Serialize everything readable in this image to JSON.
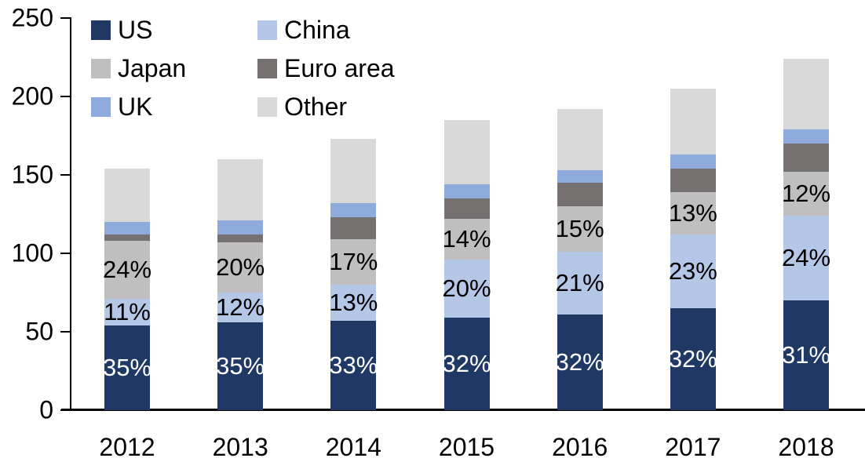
{
  "background": "#FFFFFF",
  "axis_color": "#000000",
  "chart_data": {
    "type": "bar",
    "stacked": true,
    "title": "",
    "xlabel": "",
    "ylabel": "",
    "grid": false,
    "legend_position": "top-left-inside",
    "categories": [
      "2012",
      "2013",
      "2014",
      "2015",
      "2016",
      "2017",
      "2018"
    ],
    "y_axis": {
      "min": 0,
      "max": 250,
      "ticks": [
        0,
        50,
        100,
        150,
        200,
        250
      ]
    },
    "totals": [
      154,
      160,
      173,
      185,
      192,
      205,
      224
    ],
    "series": [
      {
        "name": "US",
        "color": "#1F3864",
        "label_color": "#FFFFFF",
        "values": [
          54,
          56,
          57,
          59,
          61,
          65,
          70
        ],
        "labels": [
          "35%",
          "35%",
          "33%",
          "32%",
          "32%",
          "32%",
          "31%"
        ]
      },
      {
        "name": "China",
        "color": "#B4C7E7",
        "label_color": "#000000",
        "values": [
          17,
          19,
          23,
          37,
          40,
          47,
          54
        ],
        "labels": [
          "11%",
          "12%",
          "13%",
          "20%",
          "21%",
          "23%",
          "24%"
        ]
      },
      {
        "name": "Japan",
        "color": "#BFBFBF",
        "label_color": "#000000",
        "values": [
          37,
          32,
          29,
          26,
          29,
          27,
          28
        ],
        "labels": [
          "24%",
          "20%",
          "17%",
          "14%",
          "15%",
          "13%",
          "12%"
        ]
      },
      {
        "name": "Euro area",
        "color": "#767171",
        "label_color": "#000000",
        "values": [
          4,
          5,
          14,
          13,
          15,
          15,
          18
        ],
        "labels": [
          "",
          "",
          "",
          "",
          "",
          "",
          ""
        ]
      },
      {
        "name": "UK",
        "color": "#8FAADC",
        "label_color": "#000000",
        "values": [
          8,
          9,
          9,
          9,
          8,
          9,
          9
        ],
        "labels": [
          "",
          "",
          "",
          "",
          "",
          "",
          ""
        ]
      },
      {
        "name": "Other",
        "color": "#D9D9D9",
        "label_color": "#000000",
        "values": [
          34,
          39,
          41,
          41,
          39,
          42,
          45
        ],
        "labels": [
          "",
          "",
          "",
          "",
          "",
          "",
          ""
        ]
      }
    ]
  }
}
